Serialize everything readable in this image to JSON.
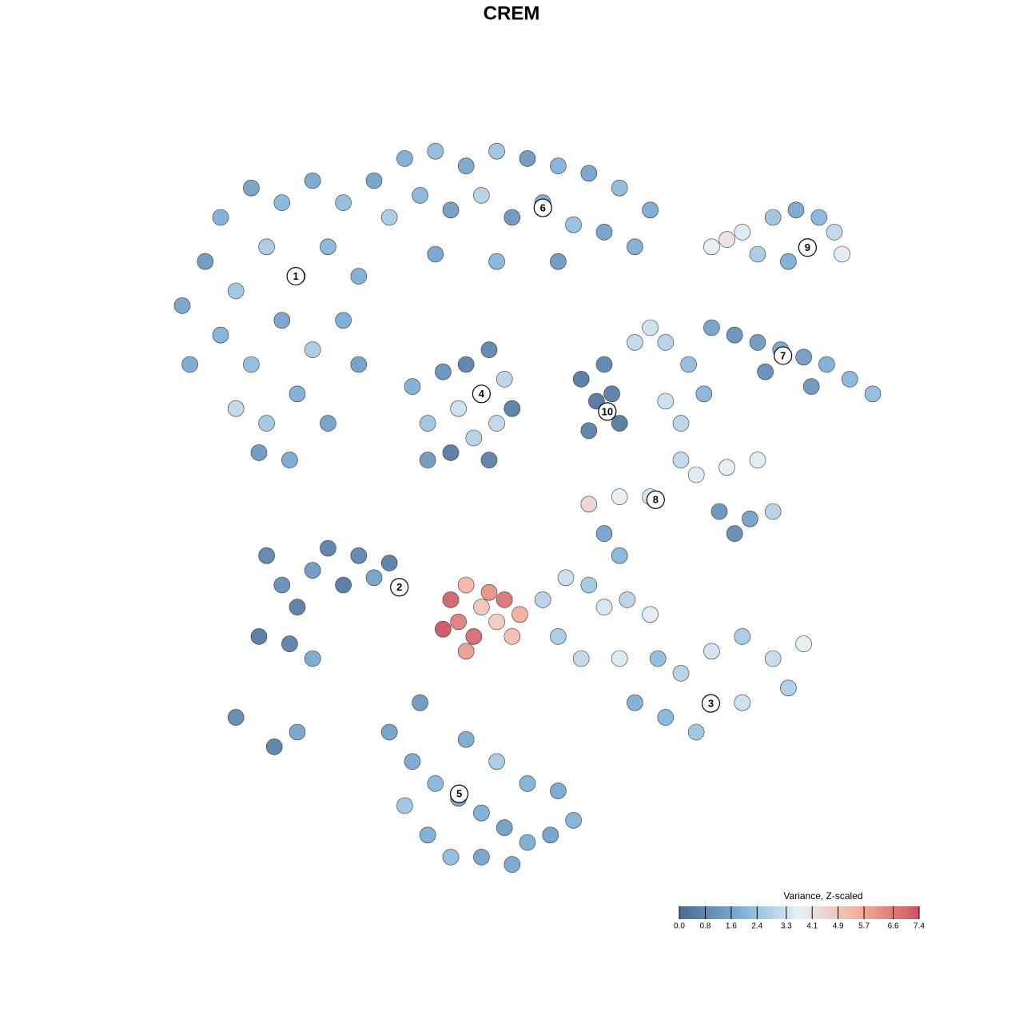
{
  "chart_data": {
    "type": "scatter",
    "title": "CREM",
    "x": [
      5,
      8,
      10,
      14,
      18,
      22,
      26,
      12,
      16,
      20,
      24,
      28,
      6,
      10,
      14,
      18,
      22,
      26,
      12,
      16,
      20,
      24,
      15,
      19,
      28,
      30,
      34,
      38,
      42,
      46,
      50,
      54,
      58,
      62,
      66,
      32,
      36,
      40,
      44,
      48,
      52,
      56,
      60,
      64,
      38,
      46,
      54,
      35,
      37,
      39,
      41,
      42,
      43,
      44,
      45,
      46,
      47,
      48,
      40,
      45,
      37,
      57,
      59,
      61,
      62,
      58,
      60,
      64,
      68,
      71,
      66,
      74,
      76,
      78,
      82,
      85,
      88,
      90,
      91,
      84,
      80,
      74,
      77,
      80,
      83,
      86,
      89,
      92,
      95,
      81,
      87,
      68,
      70,
      73,
      70,
      72,
      76,
      80,
      66,
      62,
      58,
      75,
      79,
      82,
      77,
      16,
      18,
      20,
      22,
      24,
      26,
      28,
      30,
      32,
      15,
      19,
      22,
      12,
      17,
      20,
      40,
      41,
      42,
      43,
      44,
      45,
      46,
      47,
      48,
      42,
      49,
      39,
      52,
      55,
      58,
      60,
      63,
      66,
      54,
      57,
      62,
      67,
      70,
      74,
      78,
      82,
      86,
      84,
      78,
      72,
      68,
      64,
      62,
      60,
      32,
      35,
      38,
      41,
      44,
      47,
      50,
      53,
      56,
      34,
      37,
      40,
      44,
      48,
      36,
      42,
      46,
      50,
      54
    ],
    "y": [
      78,
      84,
      90,
      94,
      92,
      95,
      92,
      80,
      86,
      82,
      86,
      82,
      70,
      74,
      70,
      76,
      72,
      76,
      64,
      62,
      66,
      62,
      58,
      57,
      70,
      95,
      98,
      99,
      97,
      99,
      98,
      97,
      96,
      94,
      91,
      90,
      93,
      91,
      93,
      90,
      92,
      89,
      88,
      86,
      85,
      84,
      84,
      67,
      62,
      69,
      64,
      70,
      60,
      66,
      72,
      62,
      68,
      64,
      58,
      57,
      57,
      68,
      65,
      66,
      62,
      61,
      70,
      73,
      73,
      70,
      75,
      86,
      87,
      88,
      90,
      91,
      90,
      88,
      85,
      84,
      85,
      75,
      74,
      73,
      72,
      71,
      70,
      68,
      66,
      69,
      67,
      65,
      62,
      66,
      57,
      55,
      56,
      57,
      52,
      52,
      51,
      50,
      49,
      50,
      47,
      44,
      40,
      37,
      42,
      45,
      40,
      44,
      41,
      43,
      33,
      32,
      30,
      22,
      18,
      20,
      38,
      35,
      40,
      33,
      37,
      39,
      35,
      38,
      33,
      31,
      36,
      34,
      38,
      41,
      40,
      37,
      38,
      36,
      33,
      30,
      30,
      30,
      28,
      31,
      33,
      30,
      32,
      26,
      24,
      20,
      22,
      24,
      44,
      47,
      20,
      16,
      13,
      11,
      9,
      7,
      5,
      6,
      8,
      10,
      6,
      3,
      3,
      2,
      24,
      19,
      16,
      13,
      12
    ],
    "values": [
      1.5,
      1.2,
      1.8,
      1.4,
      2.0,
      1.6,
      2.2,
      2.4,
      2.6,
      2.8,
      2.0,
      1.8,
      1.6,
      1.9,
      2.2,
      1.5,
      2.6,
      1.7,
      3.0,
      2.5,
      1.8,
      1.4,
      1.2,
      1.6,
      1.3,
      1.4,
      1.8,
      2.2,
      1.6,
      2.4,
      1.2,
      1.9,
      1.5,
      2.1,
      1.7,
      2.6,
      2.0,
      1.3,
      2.8,
      1.1,
      1.6,
      2.3,
      1.4,
      1.8,
      1.5,
      2.0,
      1.2,
      1.8,
      2.4,
      1.0,
      3.2,
      0.5,
      2.8,
      3.4,
      0.6,
      3.0,
      2.9,
      0.4,
      0.3,
      0.5,
      1.2,
      0.3,
      0.2,
      0.4,
      0.3,
      0.5,
      0.6,
      3.0,
      2.8,
      2.2,
      3.2,
      3.8,
      4.2,
      3.5,
      2.4,
      1.6,
      2.0,
      3.0,
      3.6,
      1.8,
      2.6,
      1.4,
      1.0,
      1.2,
      1.6,
      1.3,
      1.8,
      2.0,
      2.2,
      0.9,
      1.1,
      3.2,
      2.9,
      2.0,
      3.0,
      3.5,
      3.8,
      3.6,
      3.4,
      3.8,
      4.5,
      1.0,
      1.4,
      2.8,
      0.8,
      0.6,
      0.9,
      0.4,
      1.2,
      0.5,
      0.3,
      0.6,
      1.4,
      0.4,
      0.3,
      0.5,
      1.6,
      0.7,
      0.5,
      1.5,
      7.2,
      6.6,
      5.4,
      7.0,
      5.0,
      6.2,
      4.8,
      6.8,
      5.2,
      6.0,
      5.6,
      7.4,
      2.8,
      3.2,
      2.5,
      3.4,
      2.9,
      3.6,
      2.6,
      3.0,
      3.5,
      2.2,
      2.8,
      3.3,
      2.6,
      3.1,
      3.8,
      2.7,
      3.2,
      2.4,
      2.0,
      1.8,
      2.0,
      1.5,
      1.4,
      1.6,
      2.0,
      1.5,
      1.8,
      1.3,
      1.7,
      1.4,
      1.9,
      2.4,
      1.8,
      2.2,
      1.5,
      1.6,
      1.2,
      1.7,
      2.6,
      1.9,
      1.6
    ],
    "xlim": [
      0,
      100
    ],
    "ylim": [
      0,
      100
    ],
    "clusters": [
      {
        "label": "1",
        "x": 19.8,
        "y": 82
      },
      {
        "label": "2",
        "x": 33.3,
        "y": 39.7
      },
      {
        "label": "3",
        "x": 73.9,
        "y": 23.9
      },
      {
        "label": "4",
        "x": 44,
        "y": 66
      },
      {
        "label": "5",
        "x": 41.1,
        "y": 11.6
      },
      {
        "label": "6",
        "x": 52,
        "y": 91.3
      },
      {
        "label": "7",
        "x": 83.3,
        "y": 71.2
      },
      {
        "label": "8",
        "x": 66.7,
        "y": 51.6
      },
      {
        "label": "9",
        "x": 86.5,
        "y": 85.9
      },
      {
        "label": "10",
        "x": 60.4,
        "y": 63.6
      }
    ],
    "colorbar_title": "Variance, Z-scaled",
    "clim": [
      0,
      7.4
    ],
    "colorscale": [
      "#4a6b96",
      "#7aaed6",
      "#e6f0f6",
      "#f3b09a",
      "#cd5360"
    ],
    "cticks": [
      {
        "value": 0,
        "label": "0.0"
      },
      0.8,
      1.6,
      2.4,
      3.3,
      4.1,
      4.9,
      5.7,
      6.6,
      7.4
    ]
  }
}
